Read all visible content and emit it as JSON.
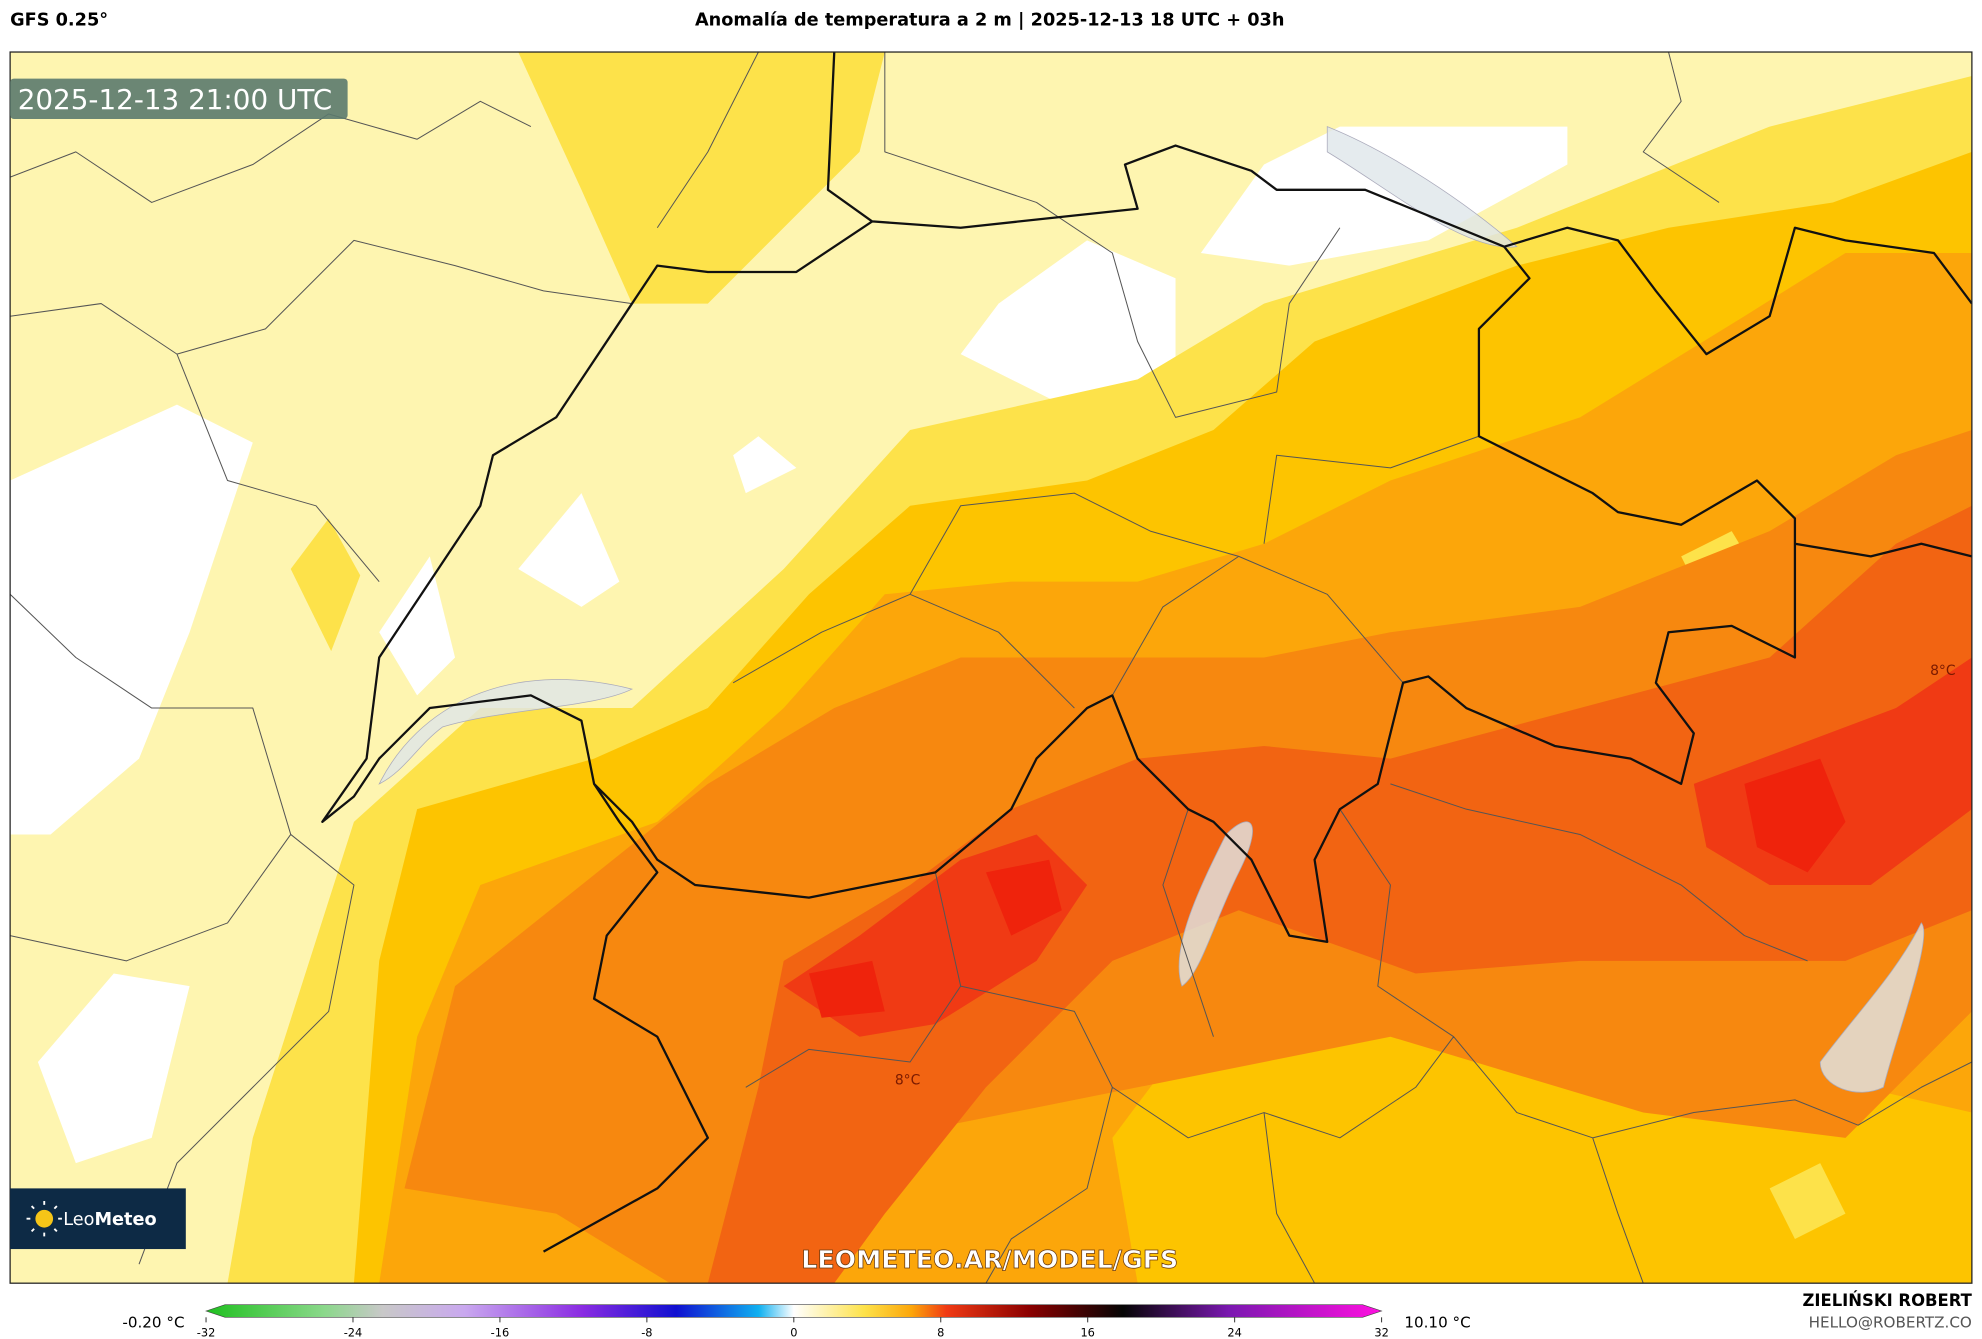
{
  "header": {
    "model": "GFS 0.25°",
    "title": "Anomalía de temperatura a 2 m | 2025-12-13 18 UTC + 03h"
  },
  "map": {
    "timestamp": "2025-12-13 21:00 UTC",
    "watermark": "LEOMETEO.AR/MODEL/GFS",
    "contour_labels": [
      "8°C",
      "8°C"
    ],
    "logo": [
      "Leo",
      "Meteo"
    ]
  },
  "colorbar": {
    "min_label": "-0.20 °C",
    "max_label": "10.10 °C",
    "ticks": [
      -32,
      -24,
      -16,
      -8,
      0,
      8,
      16,
      24,
      32
    ]
  },
  "footer": {
    "author": "ZIELIŃSKI ROBERT",
    "email": "HELLO@ROBERTZ.CO"
  }
}
